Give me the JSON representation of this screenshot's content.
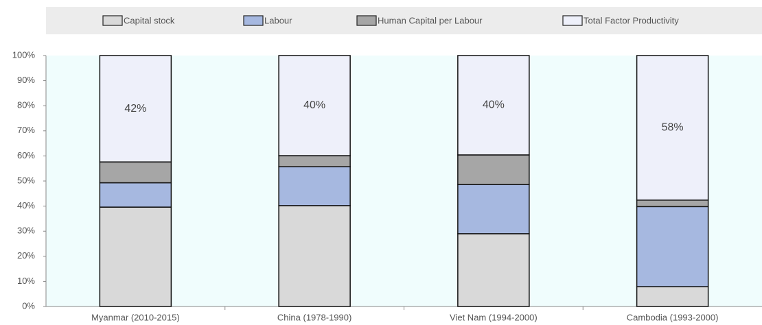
{
  "chart_data": {
    "type": "stacked_bar",
    "categories": [
      "Myanmar (2010-2015)",
      "China (1978-1990)",
      "Viet Nam (1994-2000)",
      "Cambodia (1993-2000)"
    ],
    "series": [
      {
        "name": "Capital stock",
        "color": "#d9d9d9",
        "values": [
          39.6,
          40.2,
          29.0,
          7.9
        ]
      },
      {
        "name": "Labour",
        "color": "#a6b8e0",
        "values": [
          9.7,
          15.5,
          19.6,
          31.9
        ]
      },
      {
        "name": "Human Capital per Labour",
        "color": "#a6a6a6",
        "values": [
          8.3,
          4.4,
          11.8,
          2.6
        ]
      },
      {
        "name": "Total Factor Productivity",
        "color": "#eef0fa",
        "values": [
          42.4,
          39.9,
          39.6,
          57.6
        ],
        "value_labels": [
          "42%",
          "40%",
          "40%",
          "58%"
        ]
      }
    ],
    "ylim": [
      0,
      100
    ],
    "yticks": [
      {
        "value": 0,
        "label": "0%"
      },
      {
        "value": 10,
        "label": "10%"
      },
      {
        "value": 20,
        "label": "20%"
      },
      {
        "value": 30,
        "label": "30%"
      },
      {
        "value": 40,
        "label": "40%"
      },
      {
        "value": 50,
        "label": "50%"
      },
      {
        "value": 60,
        "label": "60%"
      },
      {
        "value": 70,
        "label": "70%"
      },
      {
        "value": 80,
        "label": "80%"
      },
      {
        "value": 90,
        "label": "90%"
      },
      {
        "value": 100,
        "label": "100%"
      }
    ],
    "legend": "top"
  }
}
